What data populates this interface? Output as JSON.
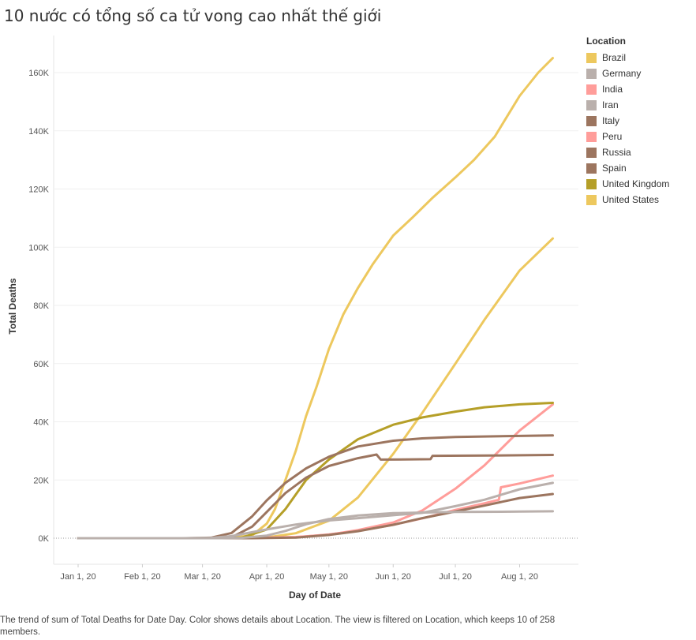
{
  "title": "10 nước có tổng số ca tử vong cao nhất thế giới",
  "caption": "The trend of sum of Total Deaths for Date Day.  Color shows details about Location. The view is filtered on Location, which keeps 10 of 258 members.",
  "legend": {
    "title": "Location",
    "items": [
      {
        "label": "Brazil",
        "color": "#edc85e"
      },
      {
        "label": "Germany",
        "color": "#bab0ac"
      },
      {
        "label": "India",
        "color": "#ff9d9a"
      },
      {
        "label": "Iran",
        "color": "#bab0ac"
      },
      {
        "label": "Italy",
        "color": "#9c755f"
      },
      {
        "label": "Peru",
        "color": "#ff9d9a"
      },
      {
        "label": "Russia",
        "color": "#9c755f"
      },
      {
        "label": "Spain",
        "color": "#9c755f"
      },
      {
        "label": "United Kingdom",
        "color": "#b59f28"
      },
      {
        "label": "United States",
        "color": "#edc85e"
      }
    ]
  },
  "chart_data": {
    "type": "line",
    "xlabel": "Day of Date",
    "ylabel": "Total Deaths",
    "xlim": [
      "2020-01-01",
      "2020-08-22"
    ],
    "ylim": [
      0,
      170000
    ],
    "x_ticks": [
      {
        "date": "2020-01-01",
        "label": "Jan 1, 20"
      },
      {
        "date": "2020-02-01",
        "label": "Feb 1, 20"
      },
      {
        "date": "2020-03-01",
        "label": "Mar 1, 20"
      },
      {
        "date": "2020-04-01",
        "label": "Apr 1, 20"
      },
      {
        "date": "2020-05-01",
        "label": "May 1, 20"
      },
      {
        "date": "2020-06-01",
        "label": "Jun 1, 20"
      },
      {
        "date": "2020-07-01",
        "label": "Jul 1, 20"
      },
      {
        "date": "2020-08-01",
        "label": "Aug 1, 20"
      }
    ],
    "y_ticks": [
      {
        "value": 0,
        "label": "0K"
      },
      {
        "value": 20000,
        "label": "20K"
      },
      {
        "value": 40000,
        "label": "40K"
      },
      {
        "value": 60000,
        "label": "60K"
      },
      {
        "value": 80000,
        "label": "80K"
      },
      {
        "value": 100000,
        "label": "100K"
      },
      {
        "value": 120000,
        "label": "120K"
      },
      {
        "value": 140000,
        "label": "140K"
      },
      {
        "value": 160000,
        "label": "160K"
      }
    ],
    "series": [
      {
        "name": "United States",
        "color": "#edc85e",
        "points": [
          [
            "2020-01-01",
            0
          ],
          [
            "2020-03-01",
            0
          ],
          [
            "2020-03-15",
            100
          ],
          [
            "2020-03-25",
            1000
          ],
          [
            "2020-04-01",
            5000
          ],
          [
            "2020-04-05",
            10000
          ],
          [
            "2020-04-10",
            20000
          ],
          [
            "2020-04-15",
            30000
          ],
          [
            "2020-04-20",
            42000
          ],
          [
            "2020-04-25",
            52000
          ],
          [
            "2020-05-01",
            65000
          ],
          [
            "2020-05-08",
            77000
          ],
          [
            "2020-05-15",
            86000
          ],
          [
            "2020-05-22",
            94000
          ],
          [
            "2020-06-01",
            104000
          ],
          [
            "2020-06-10",
            110000
          ],
          [
            "2020-06-20",
            117000
          ],
          [
            "2020-07-01",
            124000
          ],
          [
            "2020-07-10",
            130000
          ],
          [
            "2020-07-20",
            138000
          ],
          [
            "2020-08-01",
            152000
          ],
          [
            "2020-08-10",
            160000
          ],
          [
            "2020-08-17",
            165000
          ]
        ]
      },
      {
        "name": "Brazil",
        "color": "#edc85e",
        "points": [
          [
            "2020-01-01",
            0
          ],
          [
            "2020-03-17",
            0
          ],
          [
            "2020-04-01",
            250
          ],
          [
            "2020-04-15",
            1700
          ],
          [
            "2020-05-01",
            6000
          ],
          [
            "2020-05-15",
            14000
          ],
          [
            "2020-06-01",
            29000
          ],
          [
            "2020-06-15",
            43000
          ],
          [
            "2020-07-01",
            60000
          ],
          [
            "2020-07-15",
            75000
          ],
          [
            "2020-08-01",
            92000
          ],
          [
            "2020-08-17",
            103000
          ]
        ]
      },
      {
        "name": "India",
        "color": "#ff9d9a",
        "points": [
          [
            "2020-01-01",
            0
          ],
          [
            "2020-03-15",
            0
          ],
          [
            "2020-04-15",
            400
          ],
          [
            "2020-05-01",
            1200
          ],
          [
            "2020-05-15",
            2800
          ],
          [
            "2020-06-01",
            5400
          ],
          [
            "2020-06-15",
            9500
          ],
          [
            "2020-07-01",
            17000
          ],
          [
            "2020-07-15",
            25000
          ],
          [
            "2020-08-01",
            37000
          ],
          [
            "2020-08-17",
            46000
          ]
        ]
      },
      {
        "name": "United Kingdom",
        "color": "#b59f28",
        "points": [
          [
            "2020-01-01",
            0
          ],
          [
            "2020-03-10",
            0
          ],
          [
            "2020-03-20",
            200
          ],
          [
            "2020-04-01",
            3000
          ],
          [
            "2020-04-10",
            10000
          ],
          [
            "2020-04-20",
            20000
          ],
          [
            "2020-05-01",
            27000
          ],
          [
            "2020-05-15",
            34000
          ],
          [
            "2020-06-01",
            39000
          ],
          [
            "2020-06-15",
            41500
          ],
          [
            "2020-07-01",
            43500
          ],
          [
            "2020-07-15",
            45000
          ],
          [
            "2020-08-01",
            46000
          ],
          [
            "2020-08-17",
            46500
          ]
        ]
      },
      {
        "name": "Italy",
        "color": "#9c755f",
        "points": [
          [
            "2020-01-01",
            0
          ],
          [
            "2020-02-22",
            0
          ],
          [
            "2020-03-05",
            150
          ],
          [
            "2020-03-15",
            1800
          ],
          [
            "2020-03-25",
            7500
          ],
          [
            "2020-04-01",
            13000
          ],
          [
            "2020-04-10",
            19000
          ],
          [
            "2020-04-20",
            24000
          ],
          [
            "2020-05-01",
            28000
          ],
          [
            "2020-05-15",
            31500
          ],
          [
            "2020-06-01",
            33500
          ],
          [
            "2020-06-15",
            34300
          ],
          [
            "2020-07-01",
            34800
          ],
          [
            "2020-08-01",
            35150
          ],
          [
            "2020-08-17",
            35300
          ]
        ]
      },
      {
        "name": "Spain",
        "color": "#9c755f",
        "points": [
          [
            "2020-01-01",
            0
          ],
          [
            "2020-03-05",
            0
          ],
          [
            "2020-03-15",
            300
          ],
          [
            "2020-03-25",
            4000
          ],
          [
            "2020-04-01",
            9000
          ],
          [
            "2020-04-10",
            15500
          ],
          [
            "2020-04-20",
            20800
          ],
          [
            "2020-05-01",
            24800
          ],
          [
            "2020-05-15",
            27500
          ],
          [
            "2020-05-24",
            28750
          ],
          [
            "2020-05-26",
            27000
          ],
          [
            "2020-06-19",
            27150
          ],
          [
            "2020-06-20",
            28300
          ],
          [
            "2020-07-15",
            28400
          ],
          [
            "2020-08-17",
            28600
          ]
        ]
      },
      {
        "name": "Peru",
        "color": "#ff9d9a",
        "points": [
          [
            "2020-01-01",
            0
          ],
          [
            "2020-03-20",
            0
          ],
          [
            "2020-04-15",
            300
          ],
          [
            "2020-05-01",
            1300
          ],
          [
            "2020-05-15",
            2500
          ],
          [
            "2020-06-01",
            4600
          ],
          [
            "2020-06-15",
            6800
          ],
          [
            "2020-07-01",
            9700
          ],
          [
            "2020-07-15",
            12000
          ],
          [
            "2020-07-22",
            13200
          ],
          [
            "2020-07-23",
            17500
          ],
          [
            "2020-08-01",
            18800
          ],
          [
            "2020-08-17",
            21500
          ]
        ]
      },
      {
        "name": "Iran",
        "color": "#bab0ac",
        "points": [
          [
            "2020-01-01",
            0
          ],
          [
            "2020-02-20",
            0
          ],
          [
            "2020-03-05",
            100
          ],
          [
            "2020-03-15",
            700
          ],
          [
            "2020-04-01",
            3000
          ],
          [
            "2020-04-15",
            4700
          ],
          [
            "2020-05-01",
            6100
          ],
          [
            "2020-05-15",
            6900
          ],
          [
            "2020-06-01",
            7900
          ],
          [
            "2020-06-15",
            8700
          ],
          [
            "2020-07-01",
            11000
          ],
          [
            "2020-07-15",
            13200
          ],
          [
            "2020-08-01",
            16800
          ],
          [
            "2020-08-17",
            19000
          ]
        ]
      },
      {
        "name": "Russia",
        "color": "#9c755f",
        "points": [
          [
            "2020-01-01",
            0
          ],
          [
            "2020-03-25",
            0
          ],
          [
            "2020-04-15",
            200
          ],
          [
            "2020-05-01",
            1100
          ],
          [
            "2020-05-15",
            2400
          ],
          [
            "2020-06-01",
            4600
          ],
          [
            "2020-06-15",
            6900
          ],
          [
            "2020-07-01",
            9200
          ],
          [
            "2020-07-15",
            11200
          ],
          [
            "2020-08-01",
            13800
          ],
          [
            "2020-08-17",
            15200
          ]
        ]
      },
      {
        "name": "Germany",
        "color": "#bab0ac",
        "points": [
          [
            "2020-01-01",
            0
          ],
          [
            "2020-03-10",
            0
          ],
          [
            "2020-03-20",
            100
          ],
          [
            "2020-04-01",
            900
          ],
          [
            "2020-04-10",
            2500
          ],
          [
            "2020-04-20",
            4800
          ],
          [
            "2020-05-01",
            6600
          ],
          [
            "2020-05-15",
            7800
          ],
          [
            "2020-06-01",
            8600
          ],
          [
            "2020-06-15",
            8800
          ],
          [
            "2020-07-01",
            9000
          ],
          [
            "2020-08-01",
            9150
          ],
          [
            "2020-08-17",
            9250
          ]
        ]
      }
    ]
  }
}
